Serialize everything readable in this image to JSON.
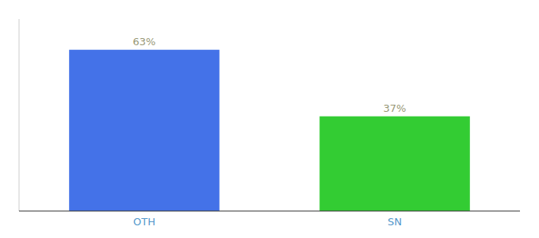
{
  "chart_data": {
    "type": "bar",
    "categories": [
      "OTH",
      "SN"
    ],
    "values": [
      63,
      37
    ],
    "value_labels": [
      "63%",
      "37%"
    ],
    "colors": [
      "#4472e8",
      "#33cc33"
    ],
    "ylim": [
      0,
      75
    ],
    "data_labels": true,
    "tick_labels": "x",
    "grid": false
  }
}
